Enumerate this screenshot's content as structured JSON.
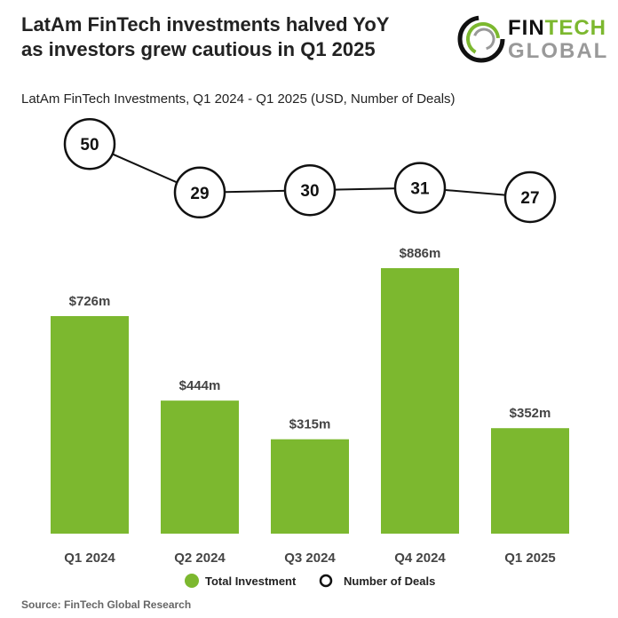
{
  "title_line1": "LatAm FinTech investments halved YoY",
  "title_line2": "as investors grew cautious in Q1 2025",
  "logo": {
    "word1": "FINTECH",
    "word2": "GLOBAL"
  },
  "source": "Source: FinTech Global Research",
  "colors": {
    "bar": "#7cb82f",
    "text": "#333333"
  },
  "chart_data": {
    "type": "bar",
    "title": "LatAm FinTech Investments, Q1 2024 - Q1 2025 (USD, Number of Deals)",
    "categories": [
      "Q1 2024",
      "Q2 2024",
      "Q3 2024",
      "Q4 2024",
      "Q1 2025"
    ],
    "series": [
      {
        "name": "Total Investment",
        "type": "bar",
        "values": [
          726,
          444,
          315,
          886,
          352
        ],
        "labels": [
          "$726m",
          "$444m",
          "$315m",
          "$886m",
          "$352m"
        ]
      },
      {
        "name": "Number of Deals",
        "type": "line",
        "values": [
          50,
          29,
          30,
          31,
          27
        ],
        "labels": [
          "50",
          "29",
          "30",
          "31",
          "27"
        ]
      }
    ],
    "legend": [
      "Total Investment",
      "Number of Deals"
    ],
    "legend_position": "bottom"
  }
}
